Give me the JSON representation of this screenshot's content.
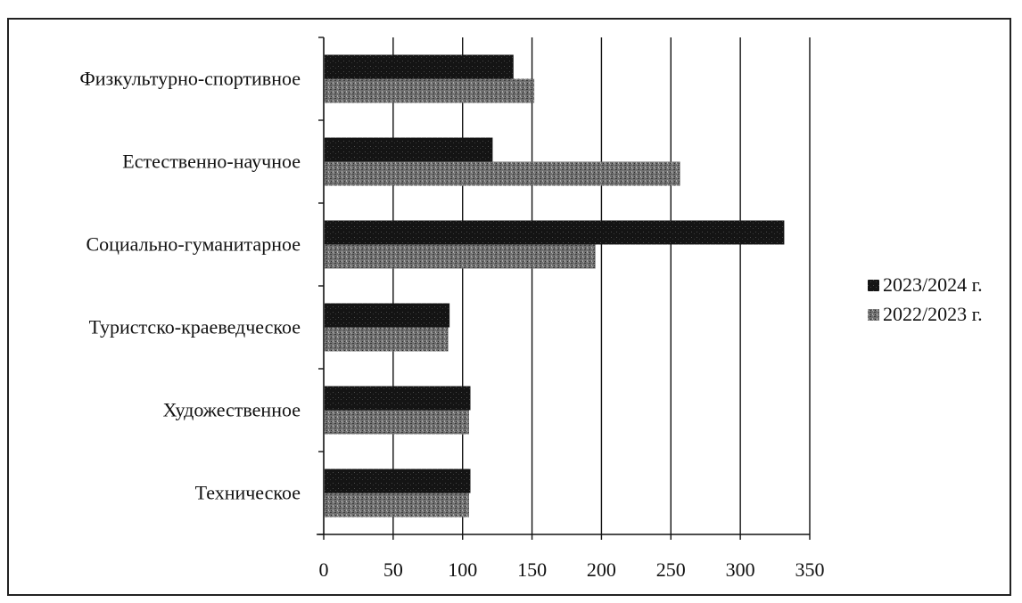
{
  "chart_data": {
    "type": "bar",
    "orientation": "horizontal",
    "categories": [
      "Физкультурно-спортивное",
      "Естественно-научное",
      "Социально-гуманитарное",
      "Туристско-краеведческое",
      "Художественное",
      "Техническое"
    ],
    "series": [
      {
        "name": "2023/2024 г.",
        "values": [
          136,
          121,
          331,
          90,
          105,
          105
        ],
        "color": "#1a1a1a"
      },
      {
        "name": "2022/2023 г.",
        "values": [
          151,
          256,
          195,
          89,
          104,
          104
        ],
        "color": "#6e6e6e"
      }
    ],
    "xlim": [
      0,
      350
    ],
    "xticks": [
      "0",
      "50",
      "100",
      "150",
      "200",
      "250",
      "300",
      "350"
    ],
    "grid": true,
    "legend_position": "right"
  }
}
